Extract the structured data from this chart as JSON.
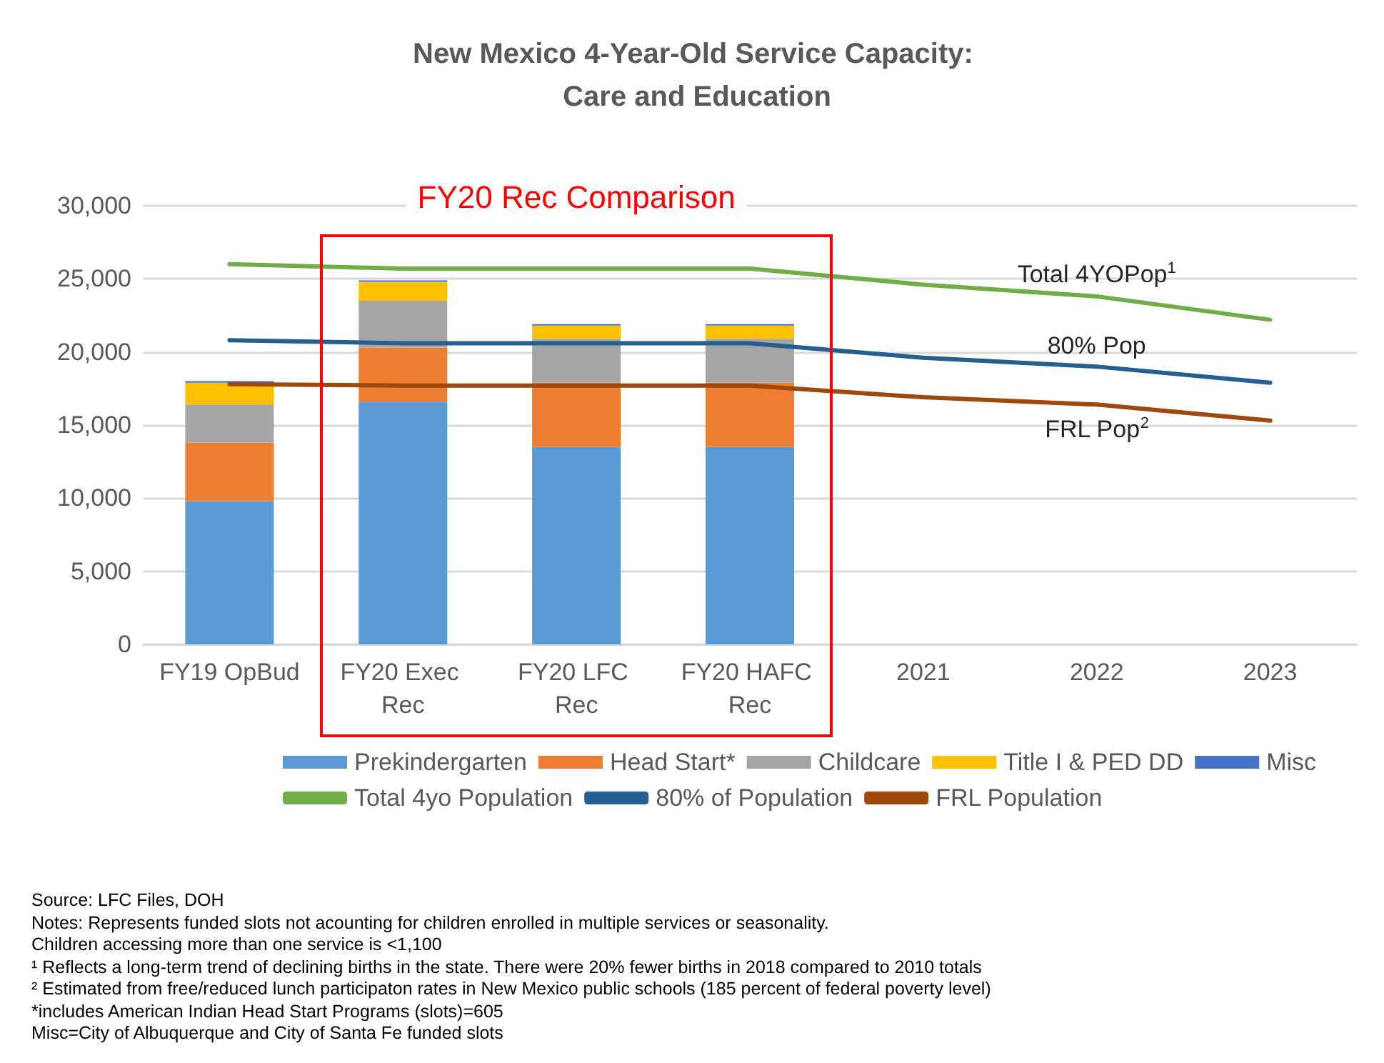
{
  "chart_data": {
    "type": "bar",
    "title": "New Mexico 4-Year-Old Service Capacity: Care and Education",
    "categories": [
      "FY19 OpBud",
      "FY20 Exec Rec",
      "FY20 LFC Rec",
      "FY20 HAFC Rec",
      "2021",
      "2022",
      "2023"
    ],
    "stacked": true,
    "series": [
      {
        "name": "Prekindergarten",
        "color": "#5b9bd5",
        "values": [
          9800,
          16600,
          13500,
          13500,
          null,
          null,
          null
        ]
      },
      {
        "name": "Head Start*",
        "color": "#ed7d31",
        "values": [
          4000,
          3700,
          4400,
          4400,
          null,
          null,
          null
        ]
      },
      {
        "name": "Childcare",
        "color": "#a5a5a5",
        "values": [
          2600,
          3200,
          3000,
          3000,
          null,
          null,
          null
        ]
      },
      {
        "name": "Title I & PED DD",
        "color": "#ffc000",
        "values": [
          1500,
          1300,
          900,
          900,
          null,
          null,
          null
        ]
      },
      {
        "name": "Misc",
        "color": "#4472c4",
        "values": [
          100,
          100,
          100,
          100,
          null,
          null,
          null
        ]
      },
      {
        "name": "Total 4yo Population",
        "type": "line",
        "color": "#70ad47",
        "values": [
          26000,
          25700,
          25700,
          25700,
          24600,
          23800,
          22200
        ]
      },
      {
        "name": "80% of Population",
        "type": "line",
        "color": "#255e91",
        "values": [
          20800,
          20600,
          20600,
          20600,
          19600,
          19000,
          17900
        ]
      },
      {
        "name": "FRL Population",
        "type": "line",
        "color": "#9e480e",
        "values": [
          17800,
          17700,
          17700,
          17700,
          16900,
          16400,
          15300
        ]
      }
    ],
    "ylim": [
      0,
      30000
    ],
    "yticks": [
      0,
      {
        "value": 5000,
        "label": "5,000"
      },
      {
        "value": 10000,
        "label": "10,000"
      },
      {
        "value": 15000,
        "label": "15,000"
      },
      {
        "value": 20000,
        "label": "20,000"
      },
      {
        "value": 25000,
        "label": "25,000"
      },
      {
        "value": 30000,
        "label": "30,000"
      }
    ],
    "grid": "y",
    "legend": "bottom",
    "marker": "none",
    "annotations": [
      "FY20 Rec Comparison",
      "Total 4YOPop$^{1}$",
      "80% Pop",
      "FRL Pop$^{2}$",
      "Source: LFC Files, DOH",
      "Notes: Represents funded slots not acounting for children enrolled in multiple services or seasonality.",
      "Children accessing more than one service is <1,100",
      "¹ Reflects a long-term trend of declining births in the state. There were 20% fewer births in 2018 compared to 2010 totals",
      "² Estimated from free/reduced lunch participaton rates in New Mexico public schools (185 percent of federal poverty level)",
      "*includes American Indian Head Start Programs (slots)=605",
      "Misc=City of Albuquerque and City of Santa Fe funded slots"
    ]
  }
}
